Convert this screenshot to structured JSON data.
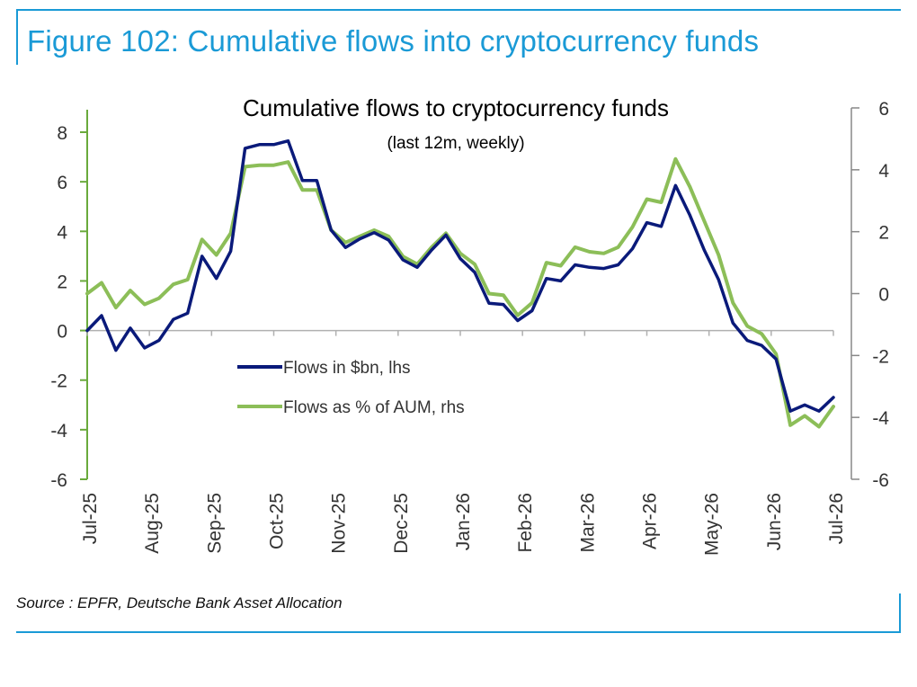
{
  "figure_title": "Figure 102: Cumulative flows into cryptocurrency funds",
  "source_note": "Source : EPFR, Deutsche Bank Asset Allocation",
  "colors": {
    "frame": "#1a9ad6",
    "left_axis": "#6aaa3c",
    "right_axis": "#888888",
    "series_bn": "#0a1a7a",
    "series_pct": "#8cbe58"
  },
  "chart_data": {
    "type": "line",
    "title": "Cumulative flows to cryptocurrency funds",
    "subtitle": "(last 12m, weekly)",
    "xlabel": "",
    "ylabel": "",
    "y_left_lim": [
      -6,
      8
    ],
    "y_right_lim": [
      -6,
      6
    ],
    "y_left_ticks": [
      "-6",
      "-4",
      "-2",
      "0",
      "2",
      "4",
      "6",
      "8"
    ],
    "y_right_ticks": [
      "-6",
      "-4",
      "-2",
      "0",
      "2",
      "4",
      "6"
    ],
    "x_tick_labels": [
      "Jul-25",
      "Aug-25",
      "Sep-25",
      "Oct-25",
      "Nov-25",
      "Dec-25",
      "Jan-26",
      "Feb-26",
      "Mar-26",
      "Apr-26",
      "May-26",
      "Jun-26",
      "Jul-26"
    ],
    "grid": false,
    "legend_placement": "center-left",
    "series": [
      {
        "name": "Flows in $bn, lhs",
        "axis": "left",
        "values": [
          0.0,
          0.6,
          -0.8,
          0.1,
          -0.7,
          -0.4,
          0.45,
          0.7,
          3.0,
          2.1,
          3.2,
          7.35,
          7.5,
          7.5,
          7.65,
          6.05,
          6.05,
          4.05,
          3.35,
          3.7,
          3.95,
          3.65,
          2.85,
          2.55,
          3.25,
          3.85,
          2.9,
          2.35,
          1.1,
          1.05,
          0.4,
          0.8,
          2.1,
          2.0,
          2.65,
          2.55,
          2.5,
          2.65,
          3.3,
          4.35,
          4.2,
          5.85,
          4.65,
          3.25,
          2.05,
          0.3,
          -0.4,
          -0.6,
          -1.15,
          -3.25,
          -3.0,
          -3.25,
          -2.7
        ]
      },
      {
        "name": "Flows as % of AUM, rhs",
        "axis": "right",
        "values": [
          0.0,
          0.35,
          -0.45,
          0.1,
          -0.35,
          -0.15,
          0.3,
          0.45,
          1.75,
          1.25,
          1.95,
          4.1,
          4.15,
          4.15,
          4.25,
          3.35,
          3.35,
          2.05,
          1.65,
          1.85,
          2.05,
          1.85,
          1.2,
          0.95,
          1.5,
          1.95,
          1.3,
          0.95,
          0.0,
          -0.05,
          -0.7,
          -0.3,
          1.0,
          0.9,
          1.5,
          1.35,
          1.3,
          1.5,
          2.15,
          3.05,
          2.95,
          4.35,
          3.45,
          2.35,
          1.25,
          -0.3,
          -1.05,
          -1.3,
          -1.95,
          -4.25,
          -3.95,
          -4.3,
          -3.65
        ]
      }
    ]
  }
}
